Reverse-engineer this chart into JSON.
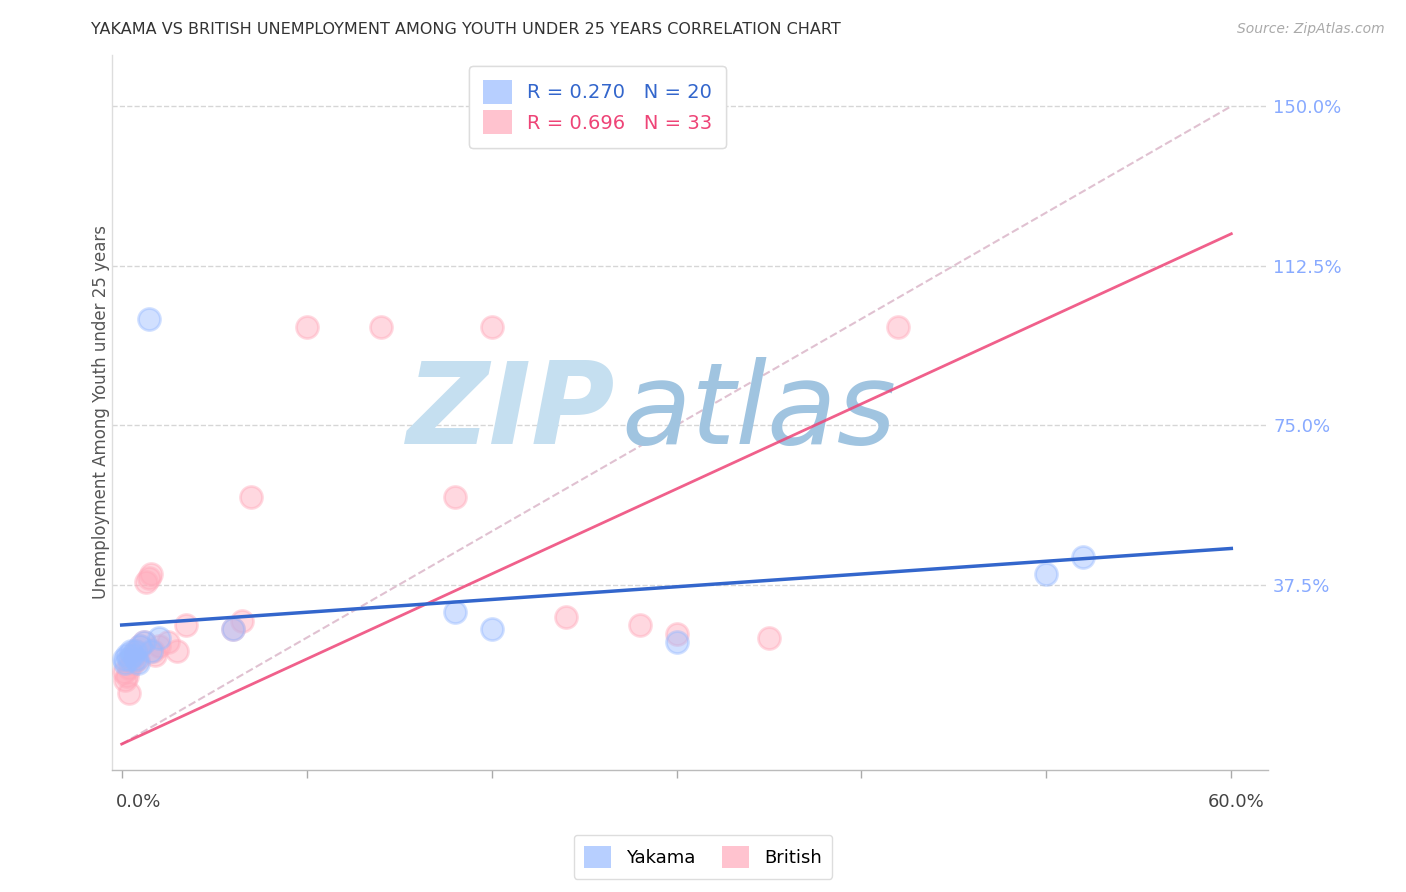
{
  "title": "YAKAMA VS BRITISH UNEMPLOYMENT AMONG YOUTH UNDER 25 YEARS CORRELATION CHART",
  "source": "Source: ZipAtlas.com",
  "ylabel": "Unemployment Among Youth under 25 years",
  "ytick_labels": [
    "37.5%",
    "75.0%",
    "112.5%",
    "150.0%"
  ],
  "ytick_values": [
    0.375,
    0.75,
    1.125,
    1.5
  ],
  "xtick_values": [
    0.0,
    0.1,
    0.2,
    0.3,
    0.4,
    0.5,
    0.6
  ],
  "xlim": [
    -0.005,
    0.62
  ],
  "ylim": [
    -0.06,
    1.62
  ],
  "legend_entry1": "R = 0.270   N = 20",
  "legend_entry2": "R = 0.696   N = 33",
  "yakama_color": "#99bbff",
  "british_color": "#ffaabb",
  "trend_yakama_color": "#3366cc",
  "trend_british_color": "#ee4477",
  "ref_line_color": "#ddbbcc",
  "watermark_zip_color": "#c8dff0",
  "watermark_atlas_color": "#a8c8e8",
  "background_color": "#ffffff",
  "grid_color": "#cccccc",
  "yakama_x": [
    0.001,
    0.002,
    0.003,
    0.004,
    0.005,
    0.006,
    0.007,
    0.008,
    0.009,
    0.01,
    0.012,
    0.015,
    0.016,
    0.02,
    0.06,
    0.18,
    0.2,
    0.3,
    0.5,
    0.52
  ],
  "yakama_y": [
    0.2,
    0.19,
    0.21,
    0.2,
    0.22,
    0.21,
    0.22,
    0.2,
    0.19,
    0.23,
    0.24,
    1.0,
    0.22,
    0.25,
    0.27,
    0.31,
    0.27,
    0.24,
    0.4,
    0.44
  ],
  "british_x": [
    0.001,
    0.002,
    0.003,
    0.004,
    0.004,
    0.005,
    0.006,
    0.007,
    0.008,
    0.009,
    0.01,
    0.012,
    0.013,
    0.015,
    0.016,
    0.017,
    0.018,
    0.02,
    0.025,
    0.03,
    0.035,
    0.06,
    0.065,
    0.1,
    0.14,
    0.18,
    0.2,
    0.24,
    0.28,
    0.3,
    0.35,
    0.42,
    0.07
  ],
  "british_y": [
    0.17,
    0.15,
    0.16,
    0.18,
    0.12,
    0.2,
    0.19,
    0.21,
    0.22,
    0.2,
    0.23,
    0.24,
    0.38,
    0.39,
    0.4,
    0.22,
    0.21,
    0.23,
    0.24,
    0.22,
    0.28,
    0.27,
    0.29,
    0.98,
    0.98,
    0.58,
    0.98,
    0.3,
    0.28,
    0.26,
    0.25,
    0.98,
    0.58
  ],
  "yakama_trend": [
    0.0,
    0.28,
    0.6,
    0.46
  ],
  "british_trend": [
    0.0,
    0.0,
    0.6,
    1.2
  ],
  "ref_line": [
    0.0,
    0.0,
    0.6,
    1.5
  ]
}
